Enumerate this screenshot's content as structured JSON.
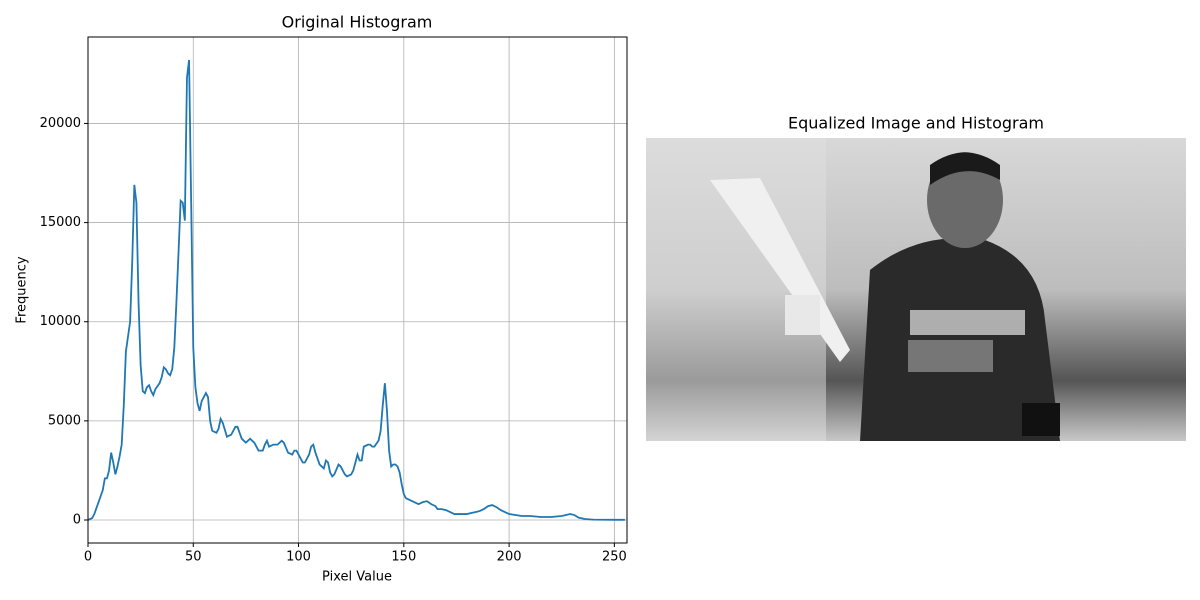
{
  "chart_data": [
    {
      "type": "line",
      "title": "Original Histogram",
      "xlabel": "Pixel Value",
      "ylabel": "Frequency",
      "x": [
        0,
        2,
        3,
        5,
        7,
        8,
        9,
        10,
        11,
        12,
        13,
        14,
        15,
        16,
        17,
        18,
        20,
        21,
        22,
        23,
        24,
        25,
        26,
        27,
        28,
        29,
        30,
        31,
        32,
        34,
        35,
        36,
        37,
        38,
        39,
        40,
        41,
        42,
        43,
        44,
        45,
        46,
        47,
        48,
        49,
        50,
        51,
        52,
        53,
        54,
        56,
        57,
        58,
        59,
        61,
        62,
        63,
        64,
        66,
        68,
        70,
        71,
        73,
        75,
        77,
        79,
        81,
        83,
        84,
        85,
        86,
        88,
        90,
        92,
        93,
        95,
        97,
        98,
        99,
        101,
        102,
        103,
        105,
        106,
        107,
        108,
        110,
        111,
        112,
        113,
        114,
        115,
        116,
        117,
        119,
        120,
        122,
        123,
        125,
        126,
        127,
        128,
        129,
        130,
        131,
        133,
        134,
        135,
        136,
        138,
        139,
        140,
        141,
        142,
        143,
        144,
        145,
        146,
        147,
        148,
        149,
        150,
        151,
        153,
        155,
        157,
        159,
        161,
        163,
        165,
        166,
        168,
        170,
        172,
        174,
        176,
        178,
        180,
        182,
        184,
        186,
        188,
        190,
        192,
        194,
        196,
        198,
        200,
        203,
        206,
        210,
        215,
        220,
        225,
        229,
        231,
        233,
        236,
        240,
        250,
        255
      ],
      "series": [
        {
          "color": "#1f77b4",
          "values": [
            0,
            100,
            300,
            900,
            1500,
            2100,
            2100,
            2500,
            3400,
            2900,
            2300,
            2700,
            3200,
            3800,
            5800,
            8500,
            10000,
            13000,
            16900,
            16000,
            11000,
            7800,
            6500,
            6400,
            6700,
            6800,
            6500,
            6300,
            6600,
            6900,
            7200,
            7700,
            7600,
            7400,
            7300,
            7600,
            8700,
            11000,
            13500,
            16100,
            16000,
            15100,
            22300,
            23200,
            16000,
            8700,
            6700,
            5900,
            5500,
            6000,
            6400,
            6200,
            5000,
            4500,
            4400,
            4600,
            5100,
            4900,
            4200,
            4300,
            4700,
            4700,
            4100,
            3900,
            4100,
            3900,
            3500,
            3500,
            3800,
            4000,
            3700,
            3800,
            3800,
            4000,
            3900,
            3400,
            3300,
            3500,
            3500,
            3100,
            2900,
            2900,
            3300,
            3700,
            3800,
            3400,
            2800,
            2700,
            2600,
            3000,
            2900,
            2400,
            2200,
            2300,
            2800,
            2700,
            2300,
            2200,
            2300,
            2500,
            2900,
            3300,
            3000,
            3000,
            3700,
            3800,
            3800,
            3700,
            3700,
            4000,
            4500,
            5800,
            6900,
            5500,
            3500,
            2700,
            2800,
            2800,
            2700,
            2400,
            1800,
            1300,
            1100,
            1000,
            900,
            800,
            900,
            950,
            800,
            700,
            550,
            550,
            500,
            400,
            300,
            300,
            300,
            300,
            350,
            400,
            450,
            550,
            700,
            750,
            650,
            500,
            400,
            300,
            250,
            200,
            200,
            150,
            150,
            200,
            300,
            250,
            120,
            50,
            20,
            10,
            10
          ]
        }
      ],
      "xlim": [
        0,
        256
      ],
      "xticks": [
        0,
        50,
        100,
        150,
        200,
        250
      ],
      "ylim": [
        -1160,
        24360
      ],
      "yticks": [
        0,
        5000,
        10000,
        15000,
        20000
      ],
      "grid": true
    },
    {
      "type": "image",
      "title": "Equalized Image and Histogram"
    }
  ]
}
